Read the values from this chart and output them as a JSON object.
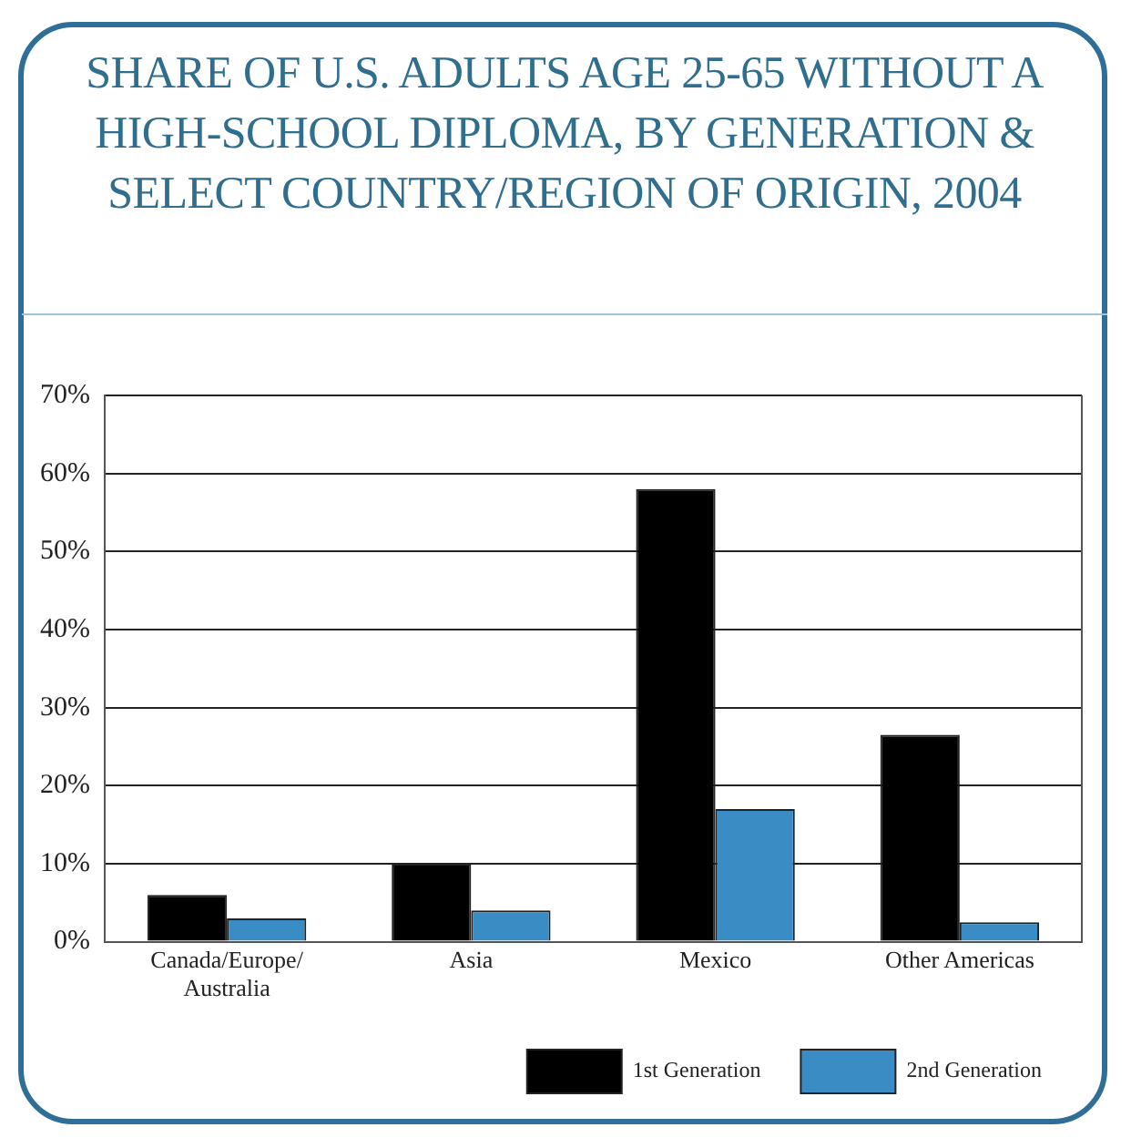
{
  "chart_data": {
    "type": "bar",
    "title": "SHARE OF U.S. ADULTS AGE 25-65 WITHOUT A HIGH-SCHOOL DIPLOMA, BY GENERATION & SELECT COUNTRY/REGION OF ORIGIN, 2004",
    "categories": [
      "Canada/Europe/Australia",
      "Asia",
      "Mexico",
      "Other Americas"
    ],
    "series": [
      {
        "name": "1st Generation",
        "color": "#000000",
        "values": [
          6,
          10,
          58,
          26.5
        ]
      },
      {
        "name": "2nd Generation",
        "color": "#3a8cc4",
        "values": [
          3,
          4,
          17,
          2.5
        ]
      }
    ],
    "ylim": [
      0,
      70
    ],
    "yticks": [
      {
        "value": 0,
        "label": "0%"
      },
      {
        "value": 10,
        "label": "10%"
      },
      {
        "value": 20,
        "label": "20%"
      },
      {
        "value": 30,
        "label": "30%"
      },
      {
        "value": 40,
        "label": "40%"
      },
      {
        "value": 50,
        "label": "50%"
      },
      {
        "value": 60,
        "label": "60%"
      },
      {
        "value": 70,
        "label": "70%"
      }
    ],
    "grid": "y",
    "legend": "bottom right"
  }
}
